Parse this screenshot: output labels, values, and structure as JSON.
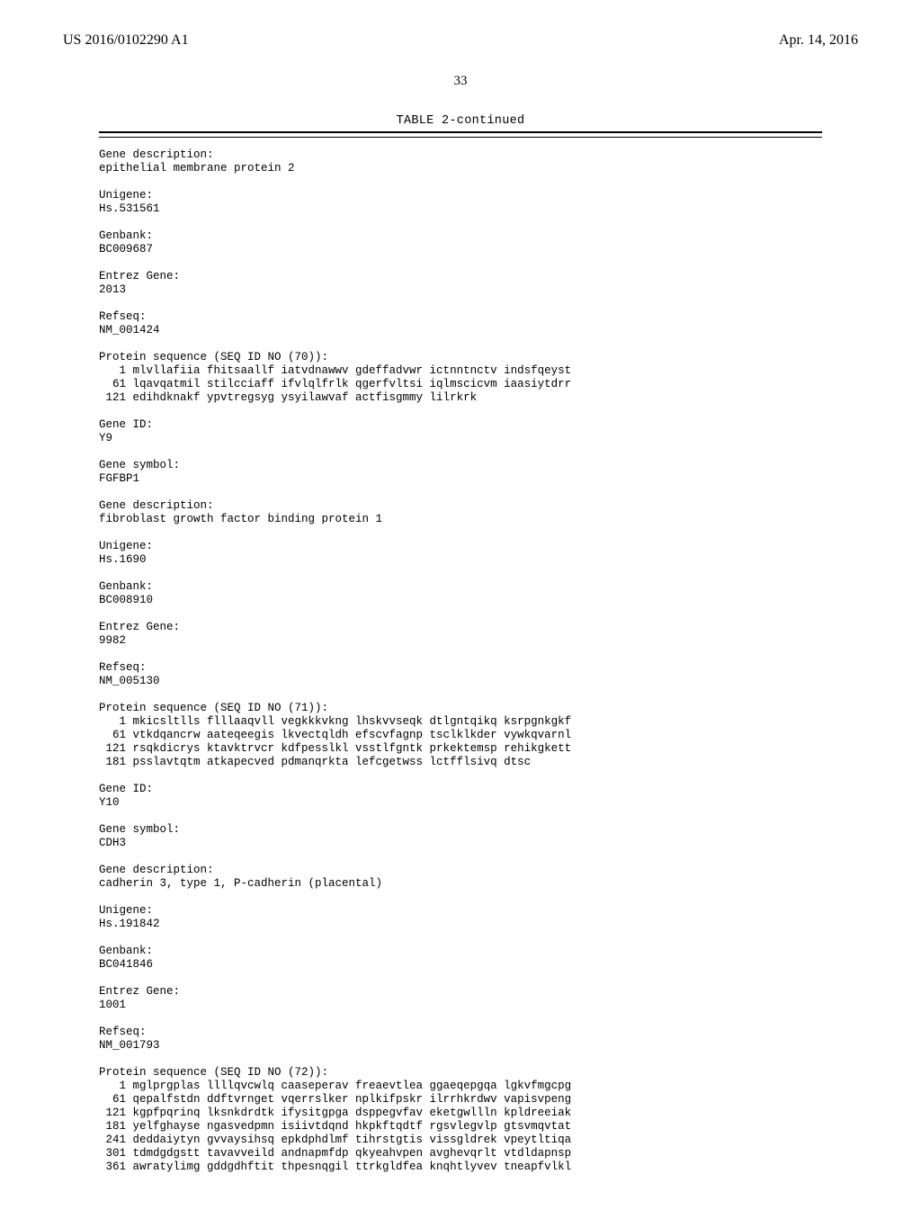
{
  "header": {
    "left": "US 2016/0102290 A1",
    "right": "Apr. 14, 2016"
  },
  "page_number": "33",
  "table": {
    "caption": "TABLE 2-continued"
  },
  "entries": [
    {
      "label": "Gene description:",
      "value": "epithelial membrane protein 2"
    },
    {
      "label": "Unigene:",
      "value": "Hs.531561"
    },
    {
      "label": "Genbank:",
      "value": "BC009687"
    },
    {
      "label": "Entrez Gene:",
      "value": "2013"
    },
    {
      "label": "Refseq:",
      "value": "NM_001424"
    }
  ],
  "protein1": {
    "header": "Protein sequence (SEQ ID NO (70)):",
    "lines": [
      "   1 mlvllafiia fhitsaallf iatvdnawwv gdeffadvwr ictnntnctv indsfqeyst",
      "  61 lqavqatmil stilcciaff ifvlqlfrlk qgerfvltsi iqlmscicvm iaasiytdrr",
      " 121 edihdknakf ypvtregsyg ysyilawvaf actfisgmmy lilrkrk"
    ]
  },
  "entries2": [
    {
      "label": "Gene ID:",
      "value": "Y9"
    },
    {
      "label": "Gene symbol:",
      "value": "FGFBP1"
    },
    {
      "label": "Gene description:",
      "value": "fibroblast growth factor binding protein 1"
    },
    {
      "label": "Unigene:",
      "value": "Hs.1690"
    },
    {
      "label": "Genbank:",
      "value": "BC008910"
    },
    {
      "label": "Entrez Gene:",
      "value": "9982"
    },
    {
      "label": "Refseq:",
      "value": "NM_005130"
    }
  ],
  "protein2": {
    "header": "Protein sequence (SEQ ID NO (71)):",
    "lines": [
      "   1 mkicsltlls flllaaqvll vegkkkvkng lhskvvseqk dtlgntqikq ksrpgnkgkf",
      "  61 vtkdqancrw aateqeegis lkvectqldh efscvfagnp tsclklkder vywkqvarnl",
      " 121 rsqkdicrys ktavktrvcr kdfpesslkl vsstlfgntk prkektemsp rehikgkett",
      " 181 psslavtqtm atkapecved pdmanqrkta lefcgetwss lctfflsivq dtsc"
    ]
  },
  "entries3": [
    {
      "label": "Gene ID:",
      "value": "Y10"
    },
    {
      "label": "Gene symbol:",
      "value": "CDH3"
    },
    {
      "label": "Gene description:",
      "value": "cadherin 3, type 1, P-cadherin (placental)"
    },
    {
      "label": "Unigene:",
      "value": "Hs.191842"
    },
    {
      "label": "Genbank:",
      "value": "BC041846"
    },
    {
      "label": "Entrez Gene:",
      "value": "1001"
    },
    {
      "label": "Refseq:",
      "value": "NM_001793"
    }
  ],
  "protein3": {
    "header": "Protein sequence (SEQ ID NO (72)):",
    "lines": [
      "   1 mglprgplas llllqvcwlq caaseperav freaevtlea ggaeqepgqa lgkvfmgcpg",
      "  61 qepalfstdn ddftvrnget vqerrslker nplkifpskr ilrrhkrdwv vapisvpeng",
      " 121 kgpfpqrinq lksnkdrdtk ifysitgpga dsppegvfav eketgwllln kpldreeiak",
      " 181 yelfghayse ngasvedpmn isiivtdqnd hkpkftqdtf rgsvlegvlp gtsvmqvtat",
      " 241 deddaiytyn gvvaysihsq epkdphdlmf tihrstgtis vissgldrek vpeytltiqa",
      " 301 tdmdgdgstt tavavveild andnapmfdp qkyeahvpen avghevqrlt vtdldapnsp",
      " 361 awratylimg gddgdhftit thpesnqgil ttrkgldfea knqhtlyvev tneapfvlkl"
    ]
  }
}
